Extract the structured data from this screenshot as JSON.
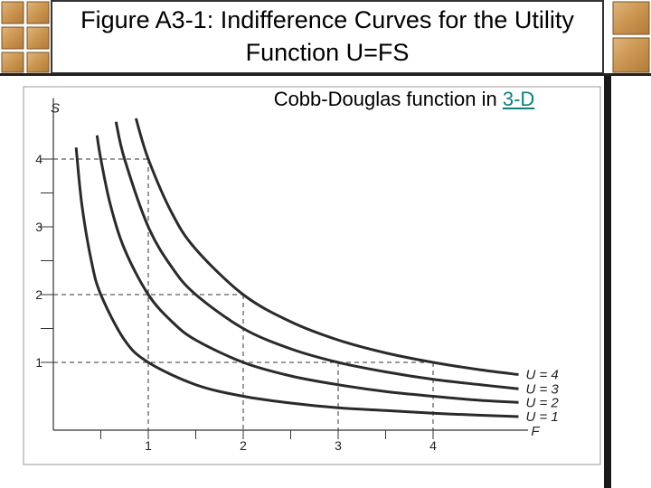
{
  "title": "Figure A3-1: Indifference Curves for the Utility Function U=FS",
  "link_text": {
    "text": "Cobb-Douglas function in ",
    "link": "3-D"
  },
  "chart_data": {
    "type": "line",
    "x_label": "F",
    "y_label": "S",
    "xlim": [
      0,
      5
    ],
    "ylim": [
      0,
      4.9
    ],
    "xticks": [
      1,
      2,
      3,
      4
    ],
    "yticks": [
      1,
      2,
      3,
      4
    ],
    "xminor": [
      0.5,
      1.5,
      2.5,
      3.5
    ],
    "yminor": [
      1.5,
      2.5,
      3.5
    ],
    "color": "#2a2a2a",
    "series": [
      {
        "name": "U = 1",
        "x": [
          0.24,
          0.3,
          0.4,
          0.5,
          0.75,
          1,
          1.5,
          2,
          2.5,
          3,
          3.5,
          4,
          4.5,
          4.9
        ],
        "values": [
          4.17,
          3.33,
          2.5,
          2,
          1.33,
          1,
          0.67,
          0.5,
          0.4,
          0.33,
          0.29,
          0.25,
          0.22,
          0.2
        ]
      },
      {
        "name": "U = 2",
        "x": [
          0.46,
          0.5,
          0.6,
          0.75,
          1,
          1.25,
          1.5,
          2,
          2.5,
          3,
          3.5,
          4,
          4.5,
          4.9
        ],
        "values": [
          4.35,
          4,
          3.33,
          2.67,
          2,
          1.6,
          1.33,
          1,
          0.8,
          0.67,
          0.57,
          0.5,
          0.44,
          0.41
        ]
      },
      {
        "name": "U = 3",
        "x": [
          0.66,
          0.75,
          1,
          1.25,
          1.5,
          2,
          2.5,
          3,
          3.5,
          4,
          4.5,
          4.9
        ],
        "values": [
          4.55,
          4,
          3,
          2.4,
          2,
          1.5,
          1.2,
          1,
          0.86,
          0.75,
          0.67,
          0.61
        ]
      },
      {
        "name": "U = 4",
        "x": [
          0.87,
          1,
          1.25,
          1.5,
          2,
          2.5,
          3,
          3.5,
          4,
          4.5,
          4.9
        ],
        "values": [
          4.6,
          4,
          3.2,
          2.67,
          2,
          1.6,
          1.33,
          1.14,
          1,
          0.89,
          0.82
        ]
      }
    ]
  }
}
